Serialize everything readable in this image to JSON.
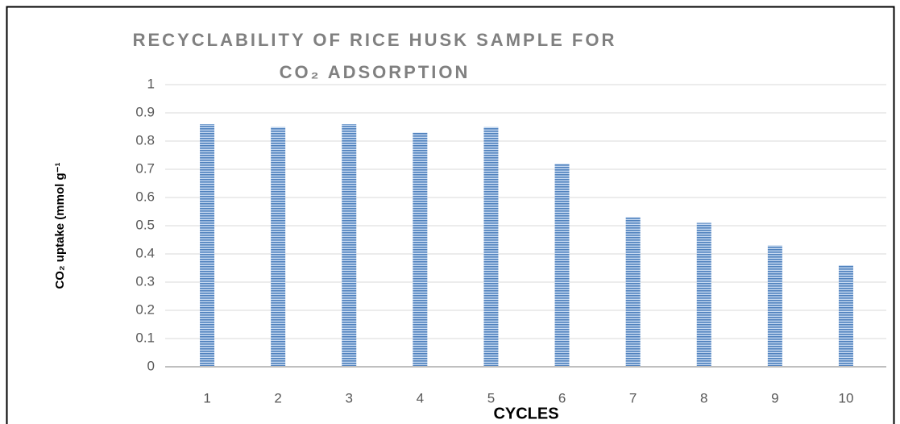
{
  "chart_data": {
    "type": "bar",
    "title": "RECYCLABILITY OF RICE HUSK SAMPLE FOR CO₂ ADSORPTION",
    "x_label": "CYCLES",
    "y_label": "CO₂ uptake (mmol g⁻¹",
    "categories": [
      "1",
      "2",
      "3",
      "4",
      "5",
      "6",
      "7",
      "8",
      "9",
      "10"
    ],
    "values": [
      0.86,
      0.85,
      0.86,
      0.83,
      0.85,
      0.72,
      0.53,
      0.51,
      0.43,
      0.36
    ],
    "color": "#4f81bd",
    "ylim": [
      0,
      1
    ],
    "yticks": [
      0,
      0.1,
      0.2,
      0.3,
      0.4,
      0.5,
      0.6,
      0.7,
      0.8,
      0.9,
      1
    ],
    "grid": true
  }
}
